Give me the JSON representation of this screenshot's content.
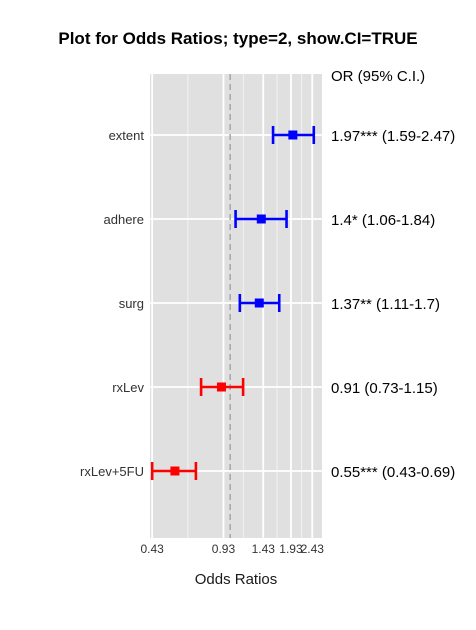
{
  "chart_data": {
    "type": "forest",
    "title": "Plot for Odds Ratios; type=2, show.CI=TRUE",
    "xlabel": "Odds Ratios",
    "ylabel": "",
    "x_scale": "log",
    "xlim": [
      0.42,
      2.7
    ],
    "x_ticks": [
      0.43,
      0.93,
      1.43,
      1.93,
      2.43
    ],
    "x_tick_labels": [
      "0.43",
      "0.93",
      "1.43",
      "1.93",
      "2.43"
    ],
    "reference_line": 1,
    "grid": true,
    "ci_header": "OR (95% C.I.)",
    "rows": [
      {
        "label": "extent",
        "or": 1.97,
        "lower": 1.59,
        "upper": 2.47,
        "text": "1.97*** (1.59-2.47)",
        "color": "#0000ff"
      },
      {
        "label": "adhere",
        "or": 1.4,
        "lower": 1.06,
        "upper": 1.84,
        "text": "1.4* (1.06-1.84)",
        "color": "#0000ff"
      },
      {
        "label": "surg",
        "or": 1.37,
        "lower": 1.11,
        "upper": 1.7,
        "text": "1.37** (1.11-1.7)",
        "color": "#0000ff"
      },
      {
        "label": "rxLev",
        "or": 0.91,
        "lower": 0.73,
        "upper": 1.15,
        "text": "0.91 (0.73-1.15)",
        "color": "#ff0000"
      },
      {
        "label": "rxLev+5FU",
        "or": 0.55,
        "lower": 0.43,
        "upper": 0.69,
        "text": "0.55*** (0.43-0.69)",
        "color": "#ff0000"
      }
    ]
  }
}
